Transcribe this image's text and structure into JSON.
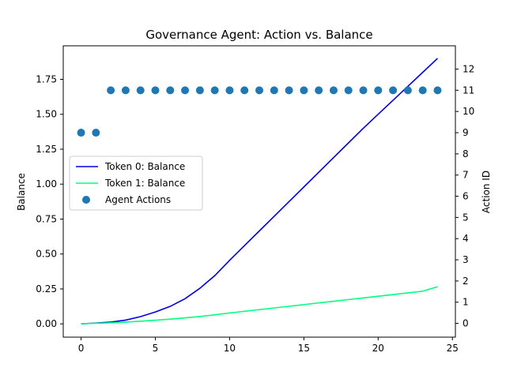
{
  "chart_data": {
    "type": "line",
    "title": "Governance Agent: Action vs. Balance",
    "xlabel": "",
    "ylabel": "Balance",
    "y2label": "Action ID",
    "xlim": [
      -1.2,
      25.2
    ],
    "ylim": [
      -0.095,
      1.99
    ],
    "y2lim": [
      -0.65,
      13.1
    ],
    "xticks": [
      0,
      5,
      10,
      15,
      20,
      25
    ],
    "yticks": [
      0.0,
      0.25,
      0.5,
      0.75,
      1.0,
      1.25,
      1.5,
      1.75
    ],
    "ytick_labels": [
      "0.00",
      "0.25",
      "0.50",
      "0.75",
      "1.00",
      "1.25",
      "1.50",
      "1.75"
    ],
    "y2ticks": [
      0,
      1,
      2,
      3,
      4,
      5,
      6,
      7,
      8,
      9,
      10,
      11,
      12
    ],
    "x": [
      0,
      1,
      2,
      3,
      4,
      5,
      6,
      7,
      8,
      9,
      10,
      11,
      12,
      13,
      14,
      15,
      16,
      17,
      18,
      19,
      20,
      21,
      22,
      23,
      24
    ],
    "series": [
      {
        "name": "Token 0: Balance",
        "kind": "line",
        "axis": "left",
        "color": "#0000dd",
        "values": [
          0.0,
          0.006,
          0.013,
          0.027,
          0.052,
          0.085,
          0.125,
          0.18,
          0.255,
          0.345,
          0.455,
          0.56,
          0.665,
          0.77,
          0.875,
          0.98,
          1.085,
          1.19,
          1.295,
          1.4,
          1.5,
          1.6,
          1.7,
          1.8,
          1.9
        ]
      },
      {
        "name": "Token 1: Balance",
        "kind": "line",
        "axis": "left",
        "color": "#00ff80",
        "values": [
          0.0,
          0.004,
          0.008,
          0.013,
          0.019,
          0.026,
          0.034,
          0.043,
          0.053,
          0.065,
          0.078,
          0.09,
          0.102,
          0.114,
          0.126,
          0.138,
          0.15,
          0.162,
          0.174,
          0.186,
          0.198,
          0.21,
          0.222,
          0.234,
          0.266
        ]
      },
      {
        "name": "Agent Actions",
        "kind": "scatter",
        "axis": "right",
        "color": "#1f77b4",
        "x": [
          0,
          1,
          2,
          3,
          4,
          5,
          6,
          7,
          8,
          9,
          10,
          11,
          12,
          13,
          14,
          15,
          16,
          17,
          18,
          19,
          20,
          21,
          22,
          23,
          24
        ],
        "values": [
          9,
          9,
          11,
          11,
          11,
          11,
          11,
          11,
          11,
          11,
          11,
          11,
          11,
          11,
          11,
          11,
          11,
          11,
          11,
          11,
          11,
          11,
          11,
          11,
          11
        ]
      }
    ],
    "legend_position": "center-left",
    "grid": false
  }
}
